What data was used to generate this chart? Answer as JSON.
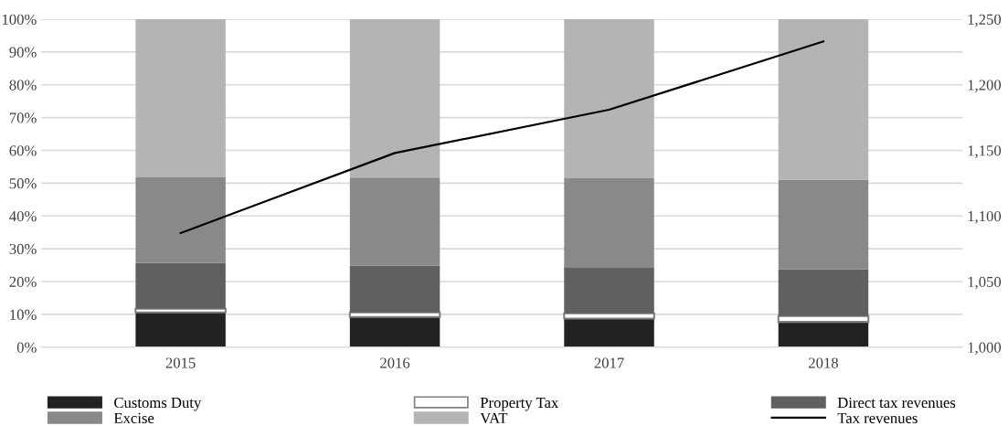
{
  "chart_data": {
    "type": "bar",
    "stacked": true,
    "categories": [
      "2015",
      "2016",
      "2017",
      "2018"
    ],
    "series": [
      {
        "name": "Customs Duty",
        "color": "#222222",
        "values": [
          10.6,
          9.2,
          8.7,
          7.7
        ]
      },
      {
        "name": "Property Tax",
        "color": "#ffffff",
        "values": [
          1.1,
          1.4,
          1.6,
          1.8
        ]
      },
      {
        "name": "Direct tax revenues",
        "color": "#606060",
        "values": [
          14.0,
          14.3,
          14.1,
          14.3
        ]
      },
      {
        "name": "Excise",
        "color": "#898989",
        "values": [
          26.1,
          26.8,
          27.1,
          27.3
        ]
      },
      {
        "name": "VAT",
        "color": "#b4b4b4",
        "values": [
          48.2,
          48.3,
          48.5,
          48.9
        ]
      },
      {
        "name": "Tax revenues",
        "type": "line",
        "axis": "y2",
        "color": "#000000",
        "values": [
          1087,
          1148,
          1181,
          1233
        ]
      }
    ],
    "ylim": [
      0,
      100
    ],
    "yticks": [
      {
        "value": 0,
        "label": "0%"
      },
      {
        "value": 10,
        "label": "10%"
      },
      {
        "value": 20,
        "label": "20%"
      },
      {
        "value": 30,
        "label": "30%"
      },
      {
        "value": 40,
        "label": "40%"
      },
      {
        "value": 50,
        "label": "50%"
      },
      {
        "value": 60,
        "label": "60%"
      },
      {
        "value": 70,
        "label": "70%"
      },
      {
        "value": 80,
        "label": "80%"
      },
      {
        "value": 90,
        "label": "90%"
      },
      {
        "value": 100,
        "label": "100%"
      }
    ],
    "y2lim": [
      1000,
      1250
    ],
    "y2ticks": [
      {
        "value": 1000,
        "label": "1,000"
      },
      {
        "value": 1050,
        "label": "1,050"
      },
      {
        "value": 1100,
        "label": "1,100"
      },
      {
        "value": 1150,
        "label": "1,150"
      },
      {
        "value": 1200,
        "label": "1,200"
      },
      {
        "value": 1250,
        "label": "1,250"
      }
    ],
    "grid": "y",
    "legend": "bottom",
    "marker": "none",
    "line_style": "solid"
  }
}
